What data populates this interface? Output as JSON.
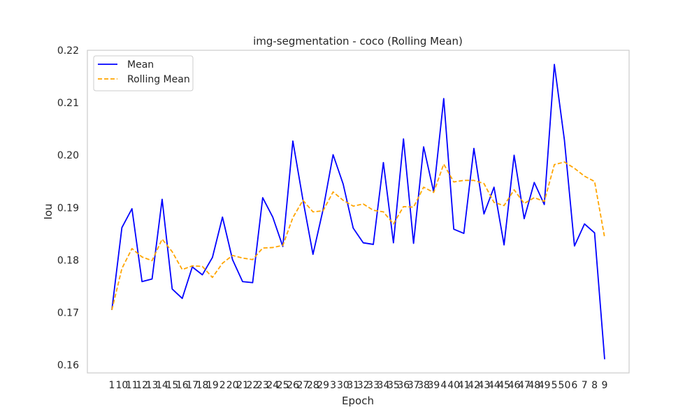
{
  "chart_data": {
    "type": "line",
    "title": "img-segmentation - coco (Rolling Mean)",
    "xlabel": "Epoch",
    "ylabel": "Iou",
    "ylim": [
      0.1585,
      0.22
    ],
    "yticks": [
      "0.16",
      "0.17",
      "0.18",
      "0.19",
      "0.20",
      "0.21",
      "0.22"
    ],
    "grid": false,
    "legend_position": "top-left",
    "categories": [
      "1",
      "10",
      "11",
      "12",
      "13",
      "14",
      "15",
      "16",
      "17",
      "18",
      "19",
      "2",
      "20",
      "21",
      "22",
      "23",
      "24",
      "25",
      "26",
      "27",
      "28",
      "29",
      "3",
      "30",
      "31",
      "32",
      "33",
      "34",
      "35",
      "36",
      "37",
      "38",
      "39",
      "4",
      "40",
      "41",
      "42",
      "43",
      "44",
      "45",
      "46",
      "47",
      "48",
      "49",
      "5",
      "50",
      "6",
      "7",
      "8",
      "9"
    ],
    "series": [
      {
        "name": "Mean",
        "color": "#0000ff",
        "style": "solid",
        "values": [
          0.1705,
          0.1862,
          0.1898,
          0.1759,
          0.1764,
          0.1916,
          0.1745,
          0.1727,
          0.1787,
          0.1772,
          0.1805,
          0.1882,
          0.1801,
          0.1759,
          0.1757,
          0.1919,
          0.1882,
          0.1826,
          0.2027,
          0.1915,
          0.1811,
          0.1896,
          0.2001,
          0.1945,
          0.1861,
          0.1833,
          0.183,
          0.1986,
          0.1833,
          0.2031,
          0.1832,
          0.2016,
          0.193,
          0.2108,
          0.1859,
          0.1851,
          0.2013,
          0.1888,
          0.1939,
          0.1829,
          0.2,
          0.1879,
          0.1948,
          0.1906,
          0.2173,
          0.2029,
          0.1827,
          0.1869,
          0.1852,
          0.1611
        ]
      },
      {
        "name": "Rolling Mean",
        "color": "#ffa500",
        "style": "dashed",
        "values": [
          0.1705,
          0.1784,
          0.1822,
          0.1806,
          0.1799,
          0.184,
          0.1816,
          0.1782,
          0.1789,
          0.1788,
          0.1767,
          0.1794,
          0.1809,
          0.1804,
          0.1801,
          0.1823,
          0.1824,
          0.1828,
          0.1881,
          0.1914,
          0.1892,
          0.1894,
          0.193,
          0.1914,
          0.1903,
          0.1907,
          0.1895,
          0.1892,
          0.1869,
          0.1902,
          0.1901,
          0.1939,
          0.1929,
          0.1983,
          0.1949,
          0.1952,
          0.1952,
          0.1946,
          0.191,
          0.1904,
          0.1934,
          0.1908,
          0.1919,
          0.1912,
          0.1982,
          0.1987,
          0.1975,
          0.196,
          0.195,
          0.1843
        ]
      }
    ]
  }
}
